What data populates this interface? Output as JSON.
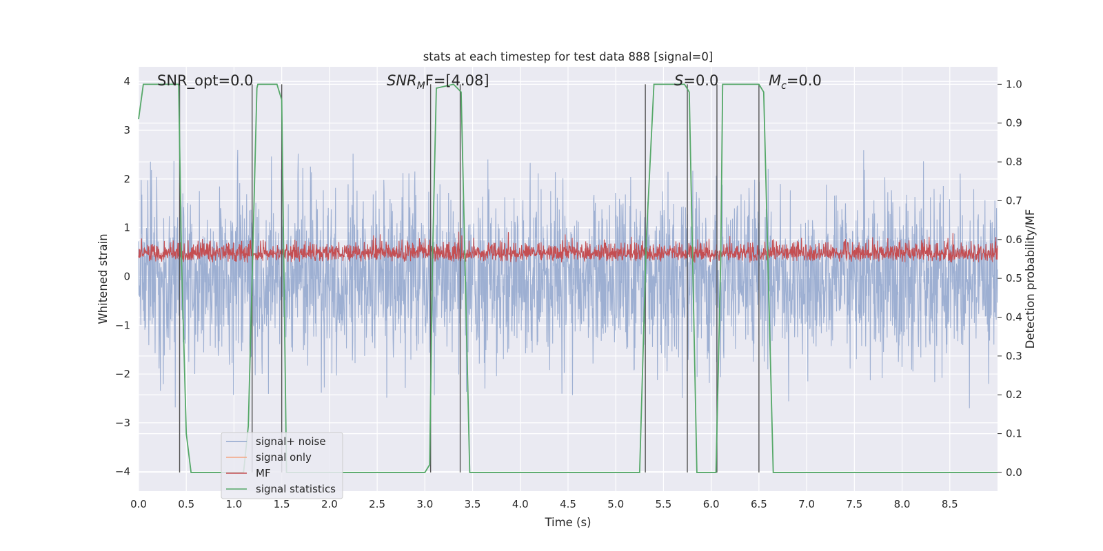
{
  "chart_data": {
    "type": "line",
    "title": "stats at each timestep for test data 888 [signal=0]",
    "xlabel": "Time (s)",
    "ylabel": "Whitened strain",
    "ylabel_right": "Detection probability/MF",
    "xlim": [
      0.0,
      9.0
    ],
    "ylim": [
      -4.4,
      4.3
    ],
    "ylim_right": [
      -0.048,
      1.045
    ],
    "xticks": [
      "0.0",
      "0.5",
      "1.0",
      "1.5",
      "2.0",
      "2.5",
      "3.0",
      "3.5",
      "4.0",
      "4.5",
      "5.0",
      "5.5",
      "6.0",
      "6.5",
      "7.0",
      "7.5",
      "8.0",
      "8.5"
    ],
    "yticks": [
      "−4",
      "−3",
      "−2",
      "−1",
      "0",
      "1",
      "2",
      "3",
      "4"
    ],
    "yticks_right": [
      "0.0",
      "0.1",
      "0.2",
      "0.3",
      "0.4",
      "0.5",
      "0.6",
      "0.7",
      "0.8",
      "0.9",
      "1.0"
    ],
    "grid": true,
    "legend_position": "lower-left",
    "annotations": {
      "snr_opt": "SNR_opt=0.0",
      "snr_mf_sym": "SNR",
      "snr_mf_sub": "M",
      "snr_mf_rest": "F=[4.08]",
      "s_sym": "S",
      "s_rest": "=0.0",
      "mc_sym": "M",
      "mc_sub": "c",
      "mc_rest": "=0.0"
    },
    "series": [
      {
        "name": "signal+ noise",
        "color": "#8fa5cc",
        "description_range": [
          -3.6,
          3.7
        ]
      },
      {
        "name": "signal only",
        "color": "#f4a582",
        "values": []
      },
      {
        "name": "MF",
        "color": "#c44e52",
        "description_range": [
          0.0,
          1.0
        ]
      },
      {
        "name": "signal statistics",
        "color": "#55a868",
        "axis": "right",
        "x": [
          0.0,
          0.05,
          0.13,
          0.42,
          0.45,
          0.5,
          0.55,
          1.1,
          1.15,
          1.2,
          1.24,
          1.25,
          1.45,
          1.5,
          1.55,
          3.0,
          3.05,
          3.08,
          3.12,
          3.3,
          3.38,
          3.47,
          5.25,
          5.32,
          5.4,
          5.72,
          5.77,
          5.85,
          6.05,
          6.1,
          6.12,
          6.5,
          6.55,
          6.65,
          9.0
        ],
        "values": [
          0.91,
          1.0,
          1.0,
          1.0,
          0.55,
          0.1,
          0.0,
          0.0,
          0.12,
          0.6,
          0.99,
          1.0,
          1.0,
          0.96,
          0.0,
          0.0,
          0.02,
          0.55,
          0.99,
          1.0,
          0.98,
          0.0,
          0.0,
          0.6,
          1.0,
          1.0,
          0.98,
          0.0,
          0.0,
          0.55,
          1.0,
          1.0,
          0.98,
          0.0,
          0.0
        ]
      }
    ],
    "vertical_markers": [
      0.43,
      1.19,
      1.5,
      3.06,
      3.37,
      5.31,
      5.75,
      6.06,
      6.5
    ]
  }
}
